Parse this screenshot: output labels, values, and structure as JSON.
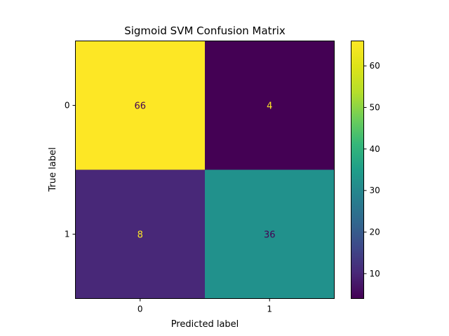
{
  "chart_data": {
    "type": "heatmap",
    "title": "Sigmoid SVM Confusion Matrix",
    "xlabel": "Predicted label",
    "ylabel": "True label",
    "x_categories": [
      "0",
      "1"
    ],
    "y_categories": [
      "0",
      "1"
    ],
    "values": [
      [
        66,
        4
      ],
      [
        8,
        36
      ]
    ],
    "colormap": "viridis",
    "colorbar": {
      "range": [
        4,
        66
      ],
      "ticks": [
        10,
        20,
        30,
        40,
        50,
        60
      ],
      "tick_labels": [
        "10",
        "20",
        "30",
        "40",
        "50",
        "60"
      ]
    },
    "cell_colors": [
      [
        "#fde725",
        "#440154"
      ],
      [
        "#482878",
        "#21918c"
      ]
    ],
    "text_colors": [
      [
        "#440154",
        "#fde725"
      ],
      [
        "#fde725",
        "#440154"
      ]
    ]
  }
}
